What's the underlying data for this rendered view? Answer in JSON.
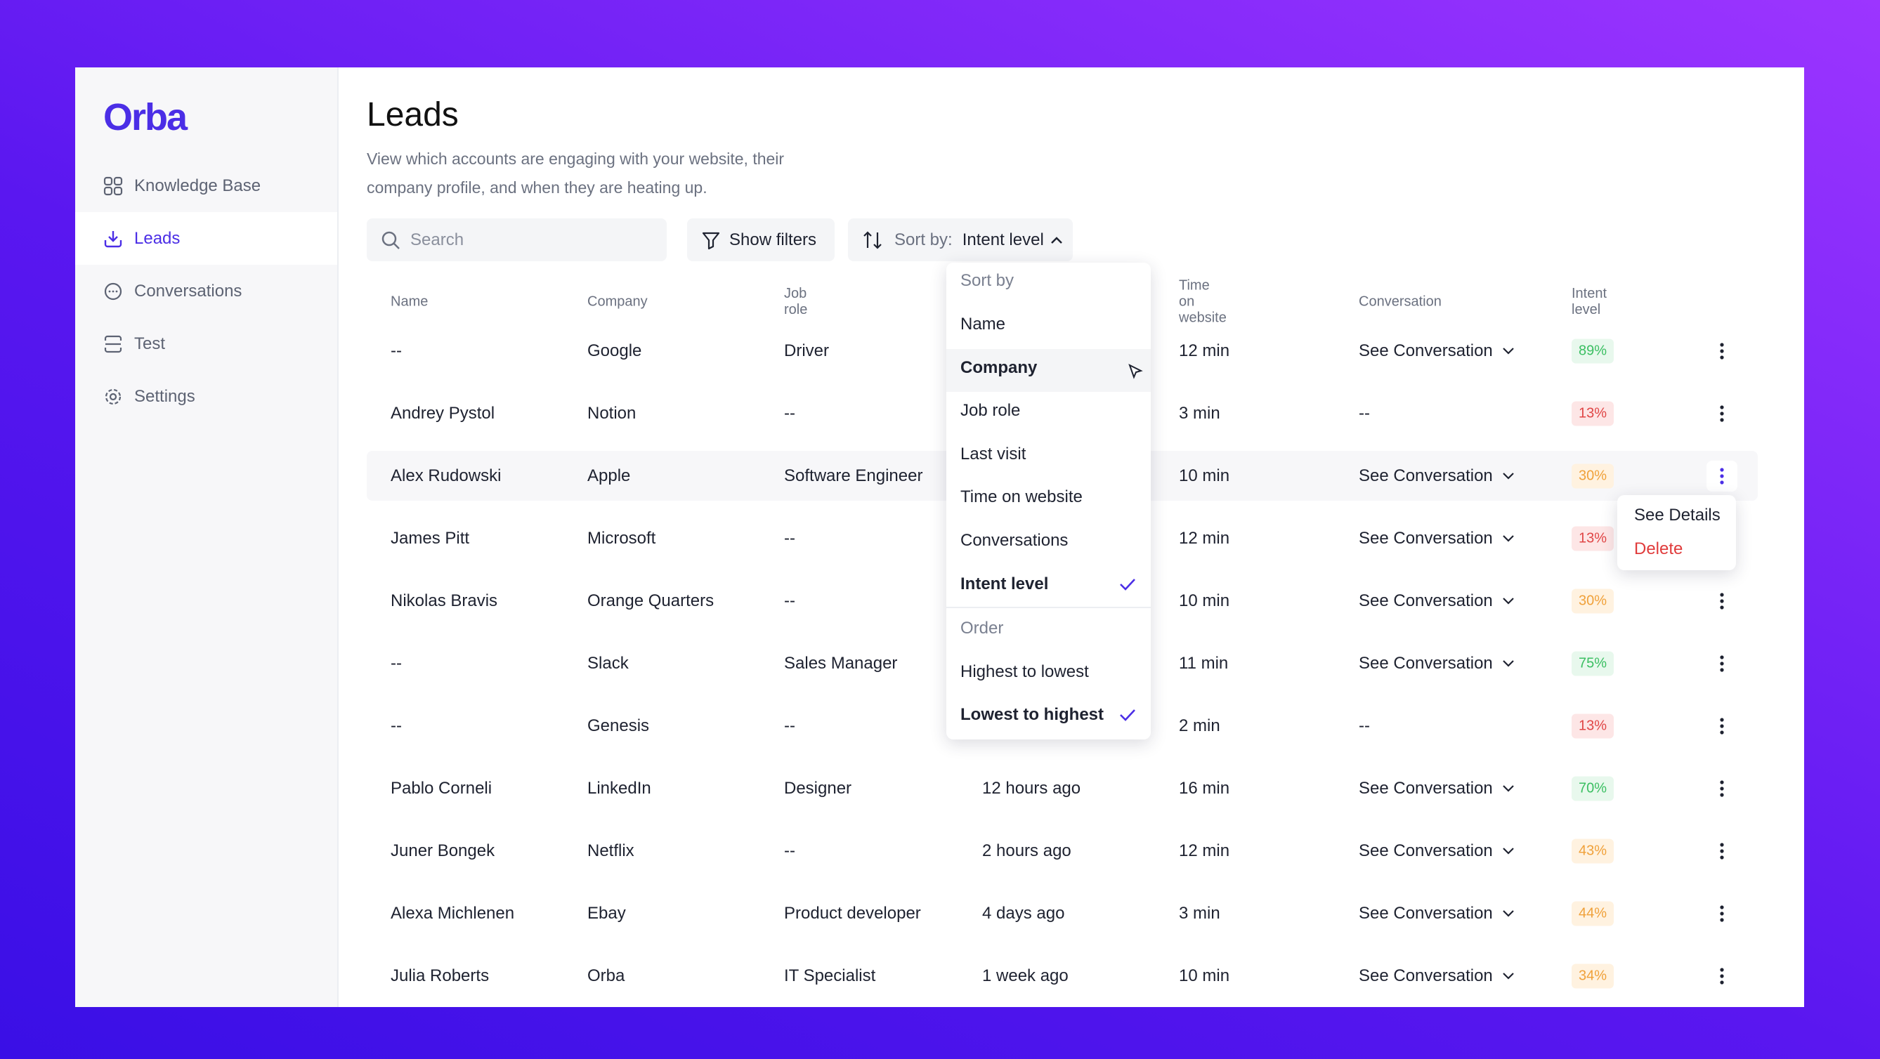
{
  "sidebar": {
    "logo": "Orba",
    "nav": [
      "Knowledge Base",
      "Leads",
      "Conversations",
      "Test",
      "Settings"
    ]
  },
  "header": {
    "title": "Leads",
    "subtitle": [
      "View which accounts are engaging with your website, their",
      "company profile, and when they are heating up."
    ]
  },
  "toolbar": {
    "search": "Search",
    "filters": "Show filters",
    "sort_label": "Sort by:",
    "sort_value": "Intent level"
  },
  "table": {
    "columns": [
      "Name",
      "Company",
      "Job role",
      "Time on website",
      "Conversation",
      "Intent level"
    ],
    "rows": [
      {
        "name": "--",
        "company": "Google",
        "job_role": "Driver",
        "time": "12 min",
        "conversation": "See Conversation",
        "intent": "89%"
      },
      {
        "name": "Andrey Pystol",
        "company": "Notion",
        "job_role": "--",
        "time": "3 min",
        "conversation": "--",
        "intent": "13%"
      },
      {
        "name": "Alex Rudowski",
        "company": "Apple",
        "job_role": "Software Engineer",
        "time": "10 min",
        "conversation": "See Conversation",
        "intent": "30%"
      },
      {
        "name": "James Pitt",
        "company": "Microsoft",
        "job_role": "--",
        "time": "12 min",
        "conversation": "See Conversation",
        "intent": "13%"
      },
      {
        "name": "Nikolas Bravis",
        "company": "Orange Quarters",
        "job_role": "--",
        "time": "10 min",
        "conversation": "See Conversation",
        "intent": "30%"
      },
      {
        "name": "--",
        "company": "Slack",
        "job_role": "Sales Manager",
        "time": "11 min",
        "conversation": "See Conversation",
        "intent": "75%"
      },
      {
        "name": "--",
        "company": "Genesis",
        "job_role": "--",
        "time": "2 min",
        "conversation": "--",
        "intent": "13%"
      },
      {
        "name": "Pablo Corneli",
        "company": "LinkedIn",
        "job_role": "Designer",
        "last_visit": "12 hours ago",
        "time": "16 min",
        "conversation": "See Conversation",
        "intent": "70%"
      },
      {
        "name": "Juner Bongek",
        "company": "Netflix",
        "job_role": "--",
        "last_visit": "2 hours ago",
        "time": "12 min",
        "conversation": "See Conversation",
        "intent": "43%"
      },
      {
        "name": "Alexa Michlenen",
        "company": "Ebay",
        "job_role": "Product developer",
        "last_visit": "4 days ago",
        "time": "3 min",
        "conversation": "See Conversation",
        "intent": "44%"
      },
      {
        "name": "Julia Roberts",
        "company": "Orba",
        "job_role": "IT Specialist",
        "last_visit": "1 week ago",
        "time": "10 min",
        "conversation": "See Conversation",
        "intent": "34%"
      }
    ]
  },
  "sort_menu": {
    "heading": "Sort by",
    "options": [
      "Name",
      "Company",
      "Job role",
      "Last visit",
      "Time on website",
      "Conversations",
      "Intent level"
    ],
    "order_heading": "Order",
    "orders": [
      "Highest to lowest",
      "Lowest to highest"
    ]
  },
  "row_menu": {
    "details": "See Details",
    "delete": "Delete"
  }
}
